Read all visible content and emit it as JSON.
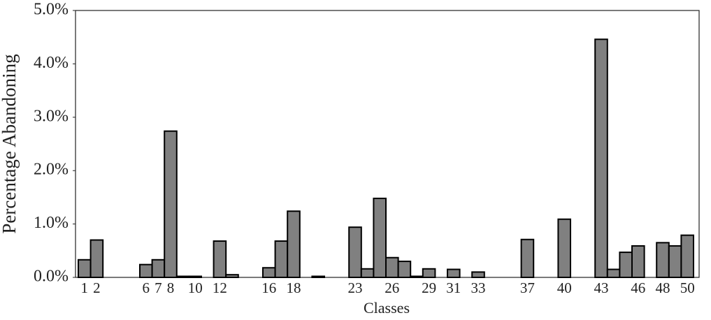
{
  "chart_data": {
    "type": "bar",
    "x_label": "Classes",
    "y_label": "Percentage Abandoning",
    "categories": [
      "1",
      "2",
      null,
      null,
      null,
      "6",
      "7",
      "8",
      null,
      "10",
      null,
      "12",
      null,
      null,
      null,
      "16",
      null,
      "18",
      null,
      null,
      null,
      null,
      "23",
      null,
      null,
      "26",
      null,
      null,
      "29",
      null,
      "31",
      null,
      "33",
      null,
      null,
      null,
      "37",
      null,
      null,
      "40",
      null,
      null,
      "43",
      null,
      null,
      "46",
      null,
      "48",
      null,
      "50"
    ],
    "values": [
      0.33,
      0.7,
      0,
      0,
      0,
      0.24,
      0.33,
      2.74,
      0.02,
      0.02,
      0,
      0.68,
      0.05,
      0,
      0,
      0.18,
      0.68,
      1.24,
      0,
      0.02,
      0,
      0,
      0.94,
      0.16,
      1.48,
      0.37,
      0.3,
      0.02,
      0.16,
      0,
      0.15,
      0,
      0.1,
      0,
      0,
      0,
      0.71,
      0,
      0,
      1.09,
      0,
      0,
      4.46,
      0.15,
      0.47,
      0.59,
      0,
      0.65,
      0.59,
      0.79
    ],
    "color": "#808080",
    "ylim": [
      0,
      5
    ],
    "yticks": [
      {
        "value": 0,
        "label": "0.0%"
      },
      {
        "value": 1,
        "label": "1.0%"
      },
      {
        "value": 2,
        "label": "2.0%"
      },
      {
        "value": 3,
        "label": "3.0%"
      },
      {
        "value": 4,
        "label": "4.0%"
      },
      {
        "value": 5,
        "label": "5.0%"
      }
    ]
  }
}
